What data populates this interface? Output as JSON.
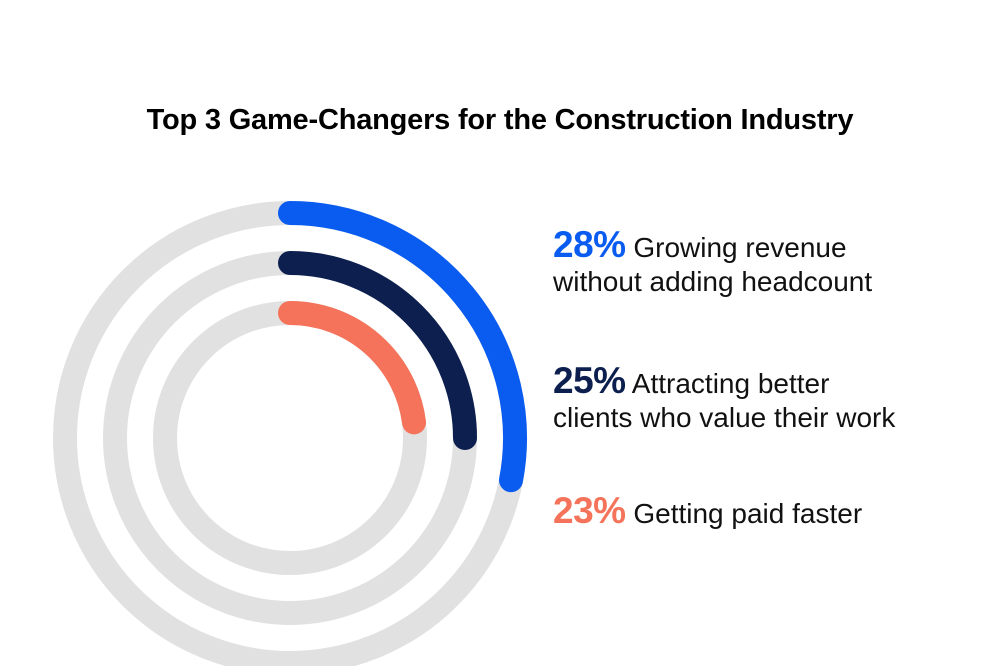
{
  "chart_data": {
    "type": "radial-bar",
    "title": "Top 3 Game-Changers for the Construction Industry",
    "series": [
      {
        "value_label": "28%",
        "value": 28,
        "label_line1": "Growing revenue",
        "label_line2": "without adding headcount",
        "color": "#0a5cf0"
      },
      {
        "value_label": "25%",
        "value": 25,
        "label_line1": "Attracting better",
        "label_line2": "clients who value their work",
        "color": "#0c1f4f"
      },
      {
        "value_label": "23%",
        "value": 23,
        "label_line1": "Getting paid faster",
        "label_line2": "",
        "color": "#f4735a"
      }
    ],
    "track_color": "#e1e1e1"
  }
}
